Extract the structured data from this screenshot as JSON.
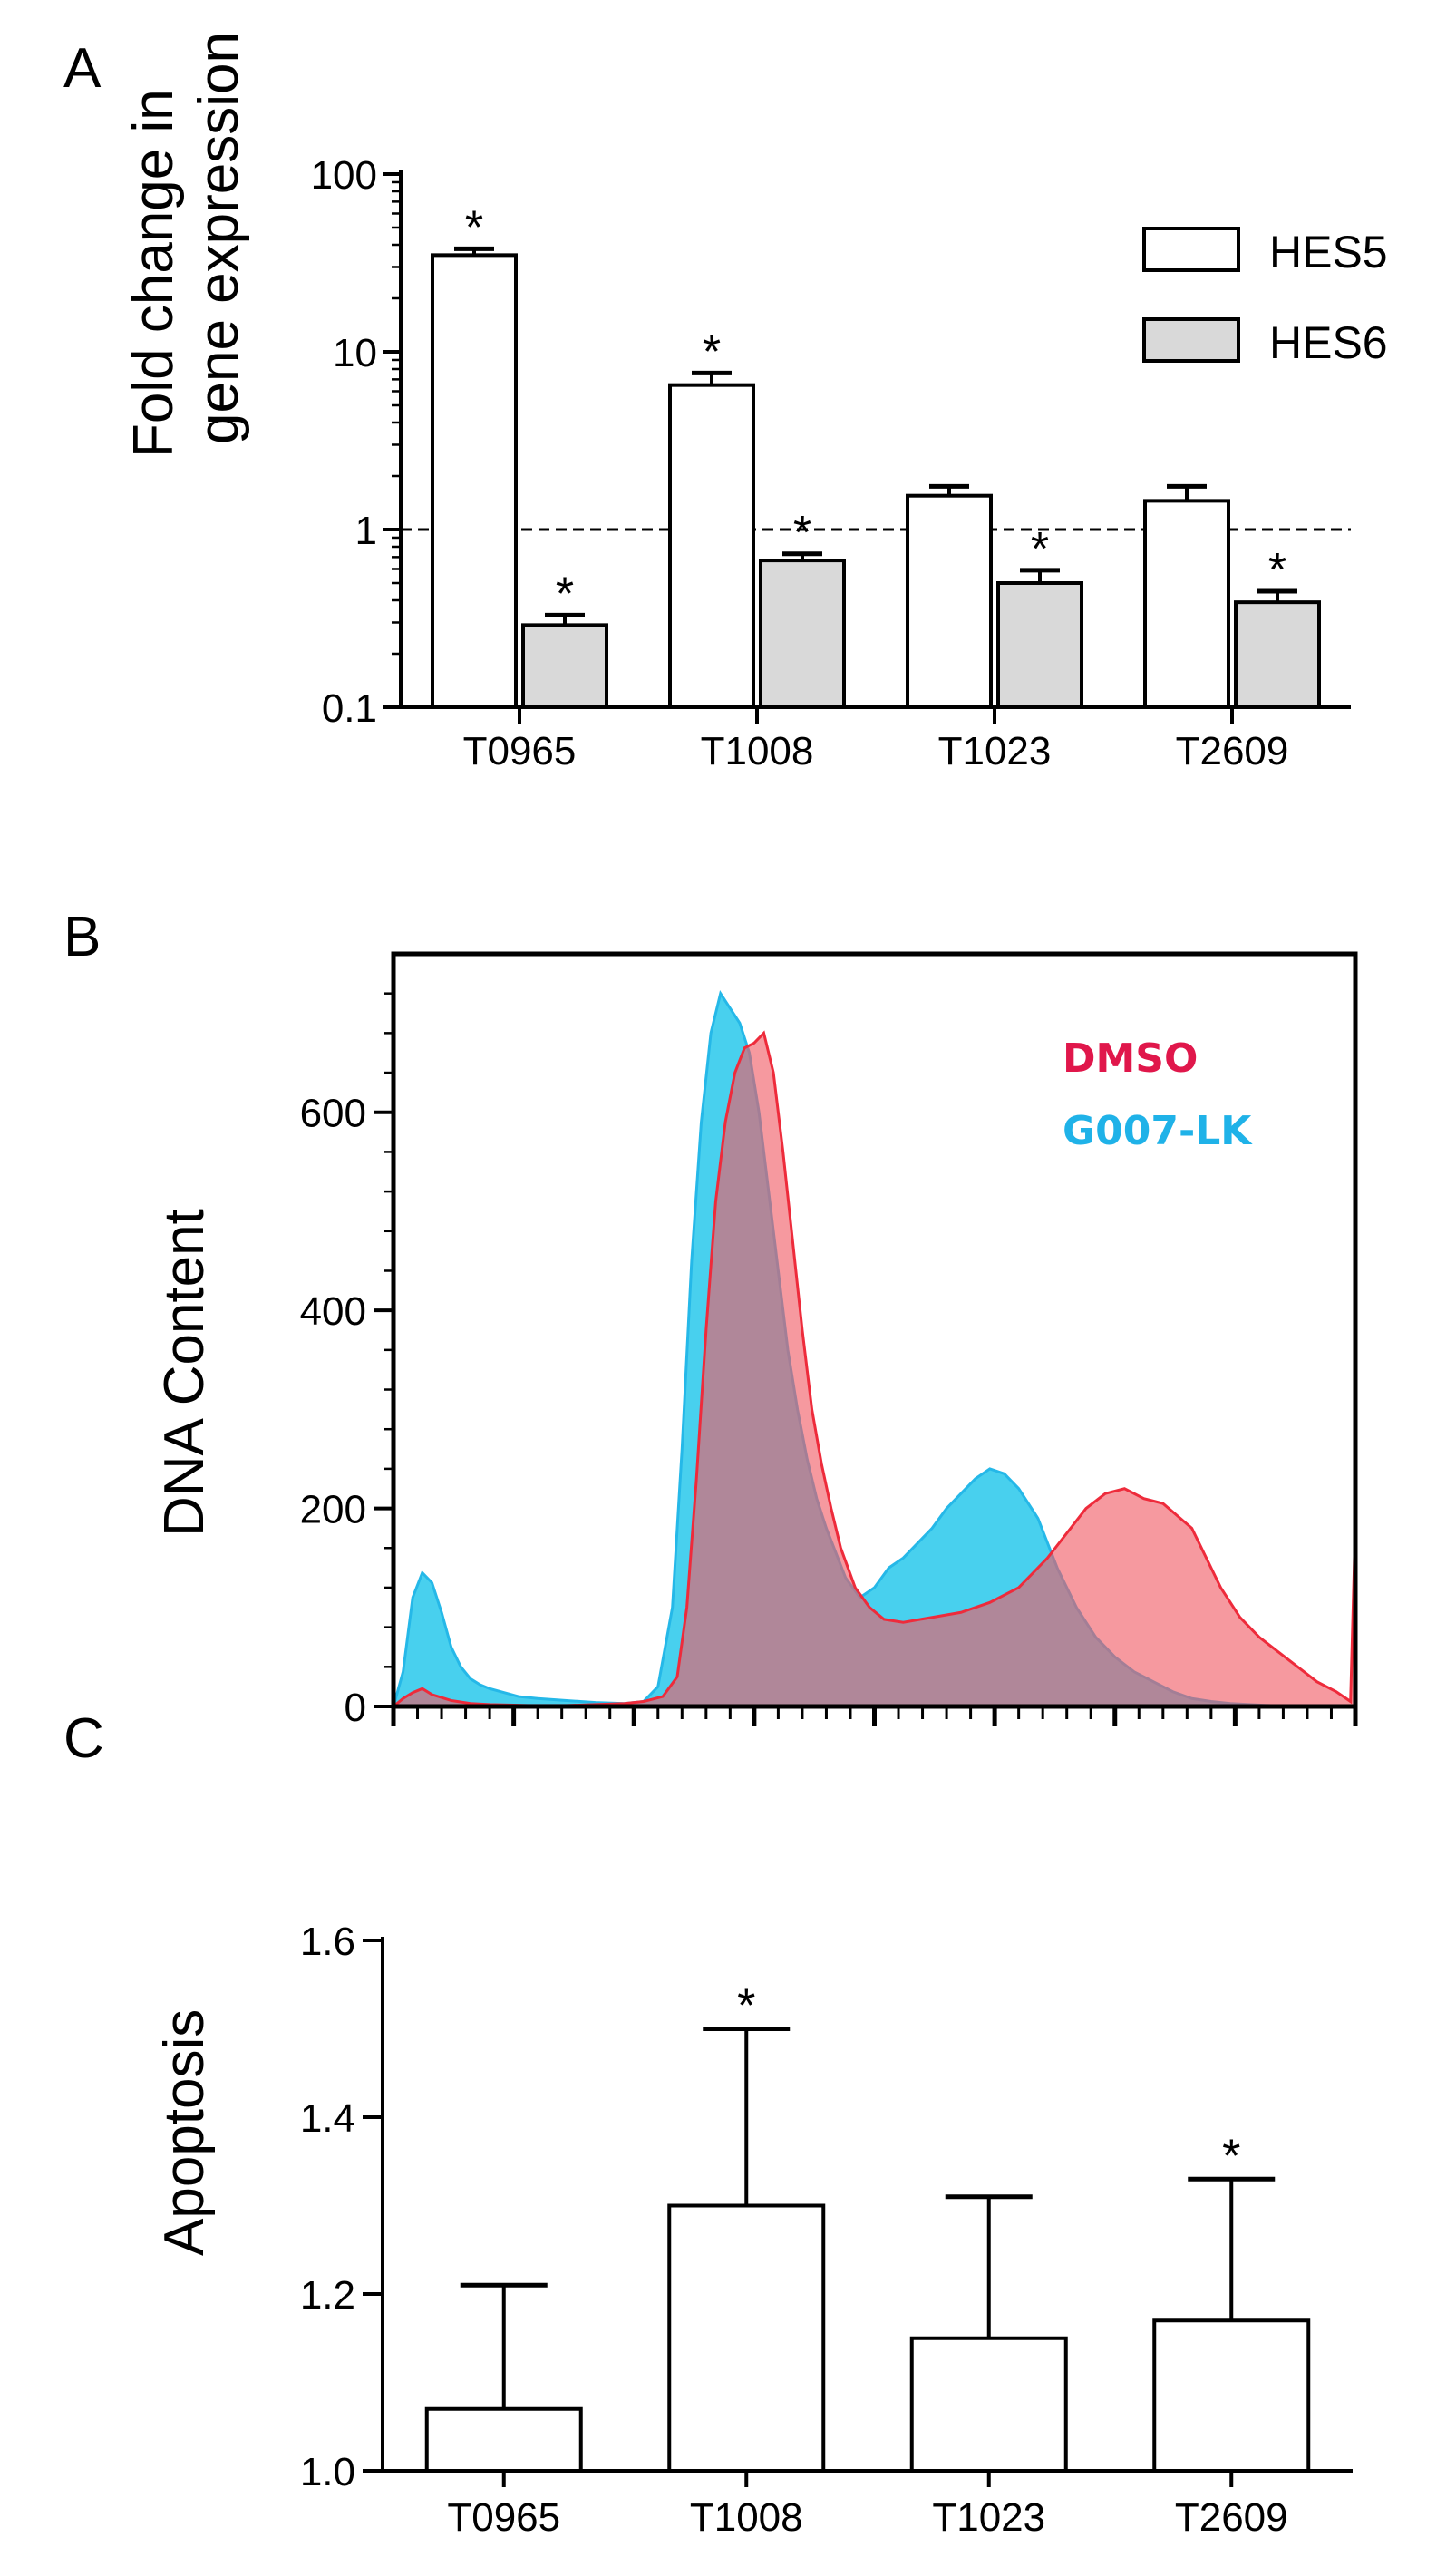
{
  "panels": {
    "a": "A",
    "b": "B",
    "c": "C"
  },
  "chart_data": [
    {
      "type": "bar",
      "panel": "A",
      "scale": "log",
      "ylabel_line1": "Fold change in",
      "ylabel_line2": "gene expression",
      "yticks": [
        0.1,
        1,
        10,
        100
      ],
      "ytick_labels": [
        "0.1",
        "1",
        "10",
        "100"
      ],
      "ylim": [
        0.1,
        100
      ],
      "reference_line": 1,
      "categories": [
        "T0965",
        "T1008",
        "T1023",
        "T2609"
      ],
      "series": [
        {
          "name": "HES5",
          "color": "#ffffff",
          "values": [
            35,
            6.5,
            1.55,
            1.45
          ],
          "errors_upper": [
            38,
            7.6,
            1.75,
            1.75
          ],
          "significant": [
            true,
            true,
            false,
            false
          ]
        },
        {
          "name": "HES6",
          "color": "#d9d9d9",
          "values": [
            0.29,
            0.67,
            0.5,
            0.39
          ],
          "errors_upper": [
            0.33,
            0.73,
            0.59,
            0.45
          ],
          "significant": [
            true,
            true,
            true,
            true
          ]
        }
      ],
      "star_label": "*"
    },
    {
      "type": "area",
      "panel": "B",
      "ylabel": "DNA Content",
      "yticks": [
        0,
        200,
        400,
        600
      ],
      "ytick_labels": [
        "0",
        "200",
        "400",
        "600"
      ],
      "ylim": [
        0,
        760
      ],
      "xlim": [
        0,
        1000
      ],
      "series": [
        {
          "name": "DMSO",
          "color": "#e0174b",
          "fill": "rgba(240,90,100,0.62)",
          "stroke": "#ee2b3b",
          "x": [
            0,
            10,
            20,
            30,
            40,
            60,
            80,
            100,
            140,
            180,
            210,
            240,
            260,
            280,
            295,
            305,
            315,
            325,
            335,
            345,
            355,
            365,
            375,
            385,
            395,
            405,
            415,
            425,
            435,
            445,
            455,
            465,
            480,
            495,
            510,
            530,
            560,
            590,
            620,
            650,
            680,
            700,
            720,
            740,
            760,
            780,
            800,
            830,
            860,
            880,
            900,
            920,
            940,
            960,
            980,
            995,
            1000
          ],
          "y": [
            0,
            8,
            14,
            18,
            12,
            6,
            3,
            2,
            1,
            1,
            2,
            3,
            5,
            10,
            30,
            100,
            230,
            380,
            510,
            590,
            640,
            665,
            670,
            680,
            640,
            560,
            470,
            380,
            300,
            245,
            200,
            160,
            120,
            100,
            88,
            85,
            90,
            95,
            105,
            120,
            150,
            175,
            200,
            215,
            220,
            210,
            205,
            180,
            120,
            90,
            70,
            55,
            40,
            25,
            15,
            5,
            185
          ]
        },
        {
          "name": "G007-LK",
          "color": "#1fb2e8",
          "fill": "rgba(40,200,235,0.85)",
          "stroke": "#25b8e8",
          "x": [
            0,
            10,
            20,
            30,
            40,
            50,
            60,
            70,
            80,
            90,
            100,
            115,
            130,
            150,
            180,
            210,
            240,
            260,
            275,
            290,
            300,
            310,
            320,
            330,
            340,
            350,
            360,
            370,
            380,
            390,
            400,
            410,
            420,
            430,
            440,
            450,
            460,
            470,
            485,
            500,
            515,
            530,
            545,
            560,
            575,
            590,
            605,
            620,
            635,
            650,
            670,
            690,
            710,
            730,
            750,
            770,
            790,
            810,
            830,
            850,
            870,
            890,
            910,
            930,
            950,
            970,
            990,
            1000
          ],
          "y": [
            0,
            35,
            110,
            135,
            125,
            95,
            60,
            40,
            28,
            22,
            18,
            14,
            10,
            8,
            6,
            4,
            3,
            5,
            20,
            100,
            260,
            450,
            590,
            680,
            720,
            705,
            690,
            660,
            600,
            520,
            440,
            360,
            300,
            250,
            210,
            180,
            155,
            130,
            110,
            120,
            140,
            150,
            165,
            180,
            200,
            215,
            230,
            240,
            235,
            220,
            190,
            140,
            100,
            70,
            50,
            35,
            25,
            15,
            8,
            5,
            3,
            2,
            1,
            0,
            0,
            0,
            0,
            0
          ]
        }
      ]
    },
    {
      "type": "bar",
      "panel": "C",
      "ylabel": "Apoptosis",
      "yticks": [
        1.0,
        1.2,
        1.4,
        1.6
      ],
      "ytick_labels": [
        "1.0",
        "1.2",
        "1.4",
        "1.6"
      ],
      "ylim": [
        1.0,
        1.6
      ],
      "categories": [
        "T0965",
        "T1008",
        "T1023",
        "T2609"
      ],
      "values": [
        1.07,
        1.3,
        1.15,
        1.17
      ],
      "errors_upper": [
        1.21,
        1.5,
        1.31,
        1.33
      ],
      "significant": [
        false,
        true,
        false,
        true
      ],
      "star_label": "*"
    }
  ]
}
